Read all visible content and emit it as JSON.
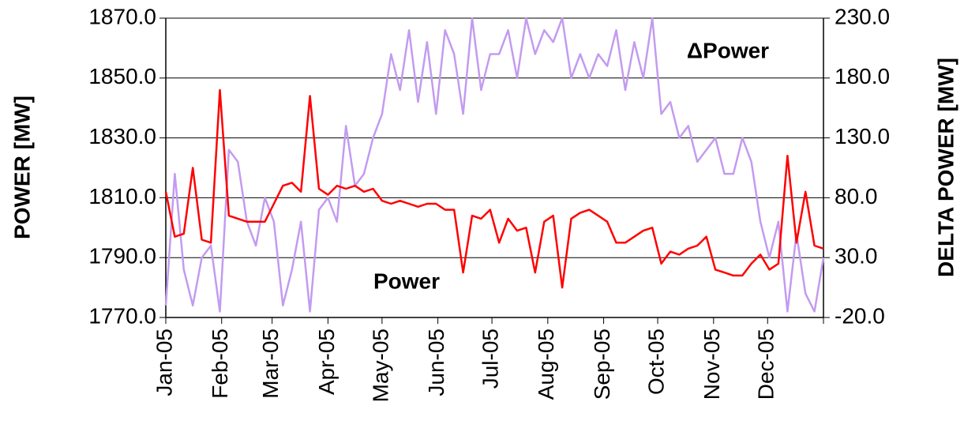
{
  "chart_data": {
    "type": "line",
    "ylabel": "POWER [MW]",
    "y2label": "DELTA POWER [MW]",
    "xlim": [
      0,
      365
    ],
    "xticks": [
      {
        "value": 0,
        "label": "Jan-05"
      },
      {
        "value": 31,
        "label": "Feb-05"
      },
      {
        "value": 59,
        "label": "Mar-05"
      },
      {
        "value": 90,
        "label": "Apr-05"
      },
      {
        "value": 120,
        "label": "May-05"
      },
      {
        "value": 151,
        "label": "Jun-05"
      },
      {
        "value": 181,
        "label": "Jul-05"
      },
      {
        "value": 212,
        "label": "Aug-05"
      },
      {
        "value": 243,
        "label": "Sep-05"
      },
      {
        "value": 273,
        "label": "Oct-05"
      },
      {
        "value": 304,
        "label": "Nov-05"
      },
      {
        "value": 334,
        "label": "Dec-05"
      }
    ],
    "ylim": [
      1770,
      1870
    ],
    "yticks": [
      {
        "value": 1770,
        "label": "1770.0"
      },
      {
        "value": 1790,
        "label": "1790.0"
      },
      {
        "value": 1810,
        "label": "1810.0"
      },
      {
        "value": 1830,
        "label": "1830.0"
      },
      {
        "value": 1850,
        "label": "1850.0"
      },
      {
        "value": 1870,
        "label": "1870.0"
      }
    ],
    "y2lim": [
      -20,
      230
    ],
    "y2ticks": [
      {
        "value": -20,
        "label": "-20.0"
      },
      {
        "value": 30,
        "label": "30.0"
      },
      {
        "value": 80,
        "label": "80.0"
      },
      {
        "value": 130,
        "label": "130.0"
      },
      {
        "value": 180,
        "label": "180.0"
      },
      {
        "value": 230,
        "label": "230.0"
      }
    ],
    "grid": true,
    "series": [
      {
        "name": "Power",
        "color": "#ff0000",
        "values": [
          1812,
          1797,
          1798,
          1820,
          1796,
          1795,
          1846,
          1804,
          1803,
          1802,
          1802,
          1802,
          1808,
          1814,
          1815,
          1812,
          1844,
          1813,
          1811,
          1814,
          1813,
          1814,
          1812,
          1813,
          1809,
          1808,
          1809,
          1808,
          1807,
          1808,
          1808,
          1806,
          1806,
          1785,
          1804,
          1803,
          1806,
          1795,
          1803,
          1799,
          1800,
          1785,
          1802,
          1804,
          1780,
          1803,
          1805,
          1806,
          1804,
          1802,
          1795,
          1795,
          1797,
          1799,
          1800,
          1788,
          1792,
          1791,
          1793,
          1794,
          1797,
          1786,
          1785,
          1784,
          1784,
          1788,
          1791,
          1786,
          1788,
          1824,
          1795,
          1812,
          1794,
          1793
        ]
      },
      {
        "name": "ΔPower",
        "color": "#c39bf0",
        "axis": "y2",
        "values": [
          -10,
          100,
          20,
          -10,
          30,
          40,
          -15,
          120,
          110,
          60,
          40,
          80,
          60,
          -10,
          20,
          60,
          -15,
          70,
          80,
          60,
          140,
          90,
          100,
          130,
          150,
          200,
          170,
          220,
          160,
          210,
          150,
          220,
          200,
          150,
          230,
          170,
          200,
          200,
          220,
          180,
          230,
          200,
          220,
          210,
          230,
          180,
          200,
          180,
          200,
          190,
          220,
          170,
          210,
          180,
          230,
          150,
          160,
          130,
          140,
          110,
          120,
          130,
          100,
          100,
          130,
          110,
          60,
          30,
          60,
          -15,
          50,
          0,
          -15,
          30
        ]
      }
    ]
  }
}
